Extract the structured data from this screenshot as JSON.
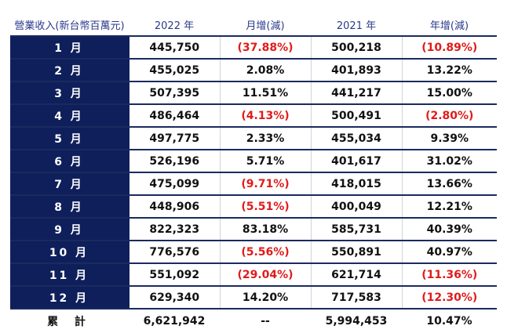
{
  "table": {
    "headers": [
      "營業收入(新台幣百萬元)",
      "2022 年",
      "月增(減)",
      "2021 年",
      "年增(減)"
    ],
    "rows": [
      {
        "month": "1 月",
        "y2022": "445,750",
        "mom": "(37.88%)",
        "mom_neg": true,
        "y2021": "500,218",
        "yoy": "(10.89%)",
        "yoy_neg": true
      },
      {
        "month": "2 月",
        "y2022": "455,025",
        "mom": "2.08%",
        "mom_neg": false,
        "y2021": "401,893",
        "yoy": "13.22%",
        "yoy_neg": false
      },
      {
        "month": "3 月",
        "y2022": "507,395",
        "mom": "11.51%",
        "mom_neg": false,
        "y2021": "441,217",
        "yoy": "15.00%",
        "yoy_neg": false
      },
      {
        "month": "4 月",
        "y2022": "486,464",
        "mom": "(4.13%)",
        "mom_neg": true,
        "y2021": "500,491",
        "yoy": "(2.80%)",
        "yoy_neg": true
      },
      {
        "month": "5 月",
        "y2022": "497,775",
        "mom": "2.33%",
        "mom_neg": false,
        "y2021": "455,034",
        "yoy": "9.39%",
        "yoy_neg": false
      },
      {
        "month": "6 月",
        "y2022": "526,196",
        "mom": "5.71%",
        "mom_neg": false,
        "y2021": "401,617",
        "yoy": "31.02%",
        "yoy_neg": false
      },
      {
        "month": "7 月",
        "y2022": "475,099",
        "mom": "(9.71%)",
        "mom_neg": true,
        "y2021": "418,015",
        "yoy": "13.66%",
        "yoy_neg": false
      },
      {
        "month": "8 月",
        "y2022": "448,906",
        "mom": "(5.51%)",
        "mom_neg": true,
        "y2021": "400,049",
        "yoy": "12.21%",
        "yoy_neg": false
      },
      {
        "month": "9 月",
        "y2022": "822,323",
        "mom": "83.18%",
        "mom_neg": false,
        "y2021": "585,731",
        "yoy": "40.39%",
        "yoy_neg": false
      },
      {
        "month": "10 月",
        "y2022": "776,576",
        "mom": "(5.56%)",
        "mom_neg": true,
        "y2021": "550,891",
        "yoy": "40.97%",
        "yoy_neg": false
      },
      {
        "month": "11 月",
        "y2022": "551,092",
        "mom": "(29.04%)",
        "mom_neg": true,
        "y2021": "621,714",
        "yoy": "(11.36%)",
        "yoy_neg": true
      },
      {
        "month": "12 月",
        "y2022": "629,340",
        "mom": "14.20%",
        "mom_neg": false,
        "y2021": "717,583",
        "yoy": "(12.30%)",
        "yoy_neg": true
      }
    ],
    "total": {
      "label": "累 計",
      "y2022": "6,621,942",
      "mom": "--",
      "y2021": "5,994,453",
      "yoy": "10.47%"
    }
  },
  "colors": {
    "header_text": "#2a3a8c",
    "month_bg": "#0e1f5b",
    "negative": "#e01b1b",
    "rule": "#1b2a5e"
  }
}
